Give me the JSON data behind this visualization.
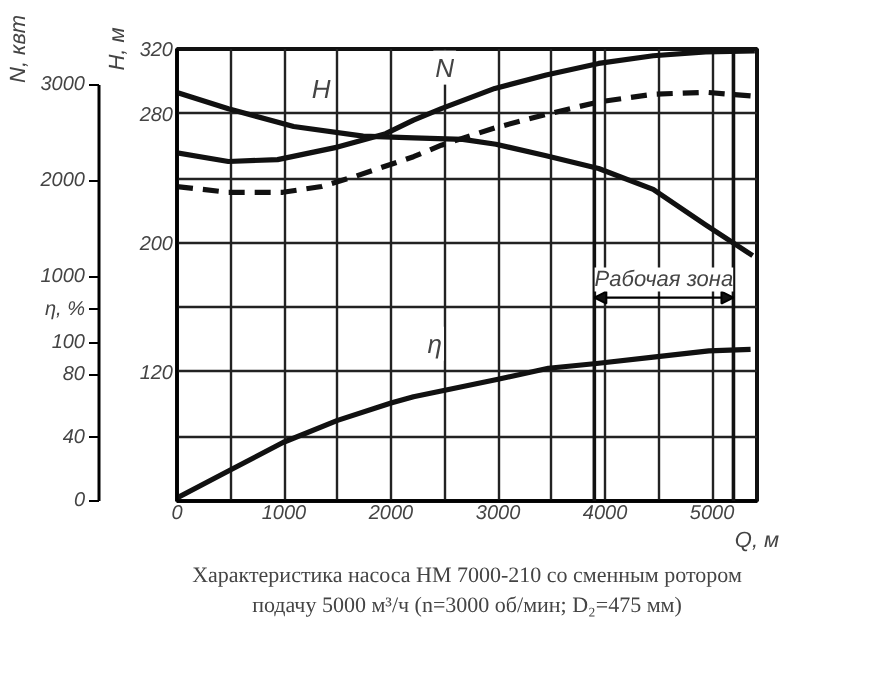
{
  "chart_data": {
    "type": "line",
    "xlabel": "Q, м",
    "ylabel": "H, м",
    "y2label": "N, квт",
    "y3label": "η, %",
    "xlim": [
      0,
      5420
    ],
    "xticks": [
      0,
      {
        "value": 500,
        "label": null
      },
      1000,
      {
        "value": 1500,
        "label": null
      },
      2000,
      {
        "value": 2500,
        "label": null
      },
      3000,
      {
        "value": 3500,
        "label": null
      },
      4000,
      {
        "value": 4500,
        "label": null
      },
      5000
    ],
    "ylim": [
      40,
      320
    ],
    "yticks": [
      {
        "value": 80,
        "label": null
      },
      120,
      {
        "value": 160,
        "label": null
      },
      200,
      {
        "value": 240,
        "label": null
      },
      280,
      320
    ],
    "y2lim": [
      -1330,
      3370
    ],
    "y2ticks": [
      1000,
      2000,
      3000
    ],
    "y3lim": [
      0,
      286
    ],
    "y3ticks": [
      0,
      40,
      80,
      100
    ],
    "grid": true,
    "marker": "none",
    "series": [
      {
        "name": "H",
        "color": "#111111",
        "line_style": "solid",
        "x": [
          0,
          480,
          1090,
          1740,
          2210,
          2670,
          2980,
          3440,
          3940,
          4450,
          4940,
          5380
        ],
        "values": [
          293,
          283,
          272,
          266,
          265,
          264,
          261,
          254,
          246,
          233,
          211,
          192
        ]
      },
      {
        "name": "N",
        "color": "#111111",
        "line_style": "solid",
        "axis": "y2",
        "x": [
          0,
          480,
          940,
          1500,
          1950,
          2210,
          2470,
          2970,
          3450,
          3940,
          4450,
          4940,
          5400
        ],
        "values": [
          2290,
          2200,
          2220,
          2350,
          2490,
          2630,
          2750,
          2960,
          3100,
          3220,
          3300,
          3340,
          3350
        ]
      },
      {
        "color": "#111111",
        "line_style": "dashed",
        "axis": "y2",
        "x": [
          0,
          480,
          990,
          1350,
          1650,
          2210,
          2470,
          2970,
          3450,
          3940,
          4450,
          4940,
          5390
        ],
        "values": [
          1940,
          1880,
          1880,
          1940,
          2040,
          2250,
          2370,
          2550,
          2690,
          2820,
          2900,
          2920,
          2880
        ]
      },
      {
        "name": "η",
        "color": "#111111",
        "line_style": "solid",
        "axis": "y3",
        "x": [
          0,
          480,
          990,
          1500,
          2000,
          2210,
          3000,
          3470,
          3920,
          4450,
          4970,
          5360
        ],
        "values": [
          2,
          19,
          37,
          51,
          62,
          66,
          77,
          84,
          87,
          91,
          95,
          96
        ]
      }
    ],
    "ref_lines": [
      {
        "axis": "x",
        "value": 3900,
        "label": "Рабочая зона"
      },
      {
        "axis": "x",
        "value": 5200
      }
    ],
    "annotations": [
      "Характеристика насоса НМ 7000-210 со сменным ротором",
      "подачу 5000 м³/ч (n=3000 об/мин; D₂=475 мм)"
    ]
  }
}
